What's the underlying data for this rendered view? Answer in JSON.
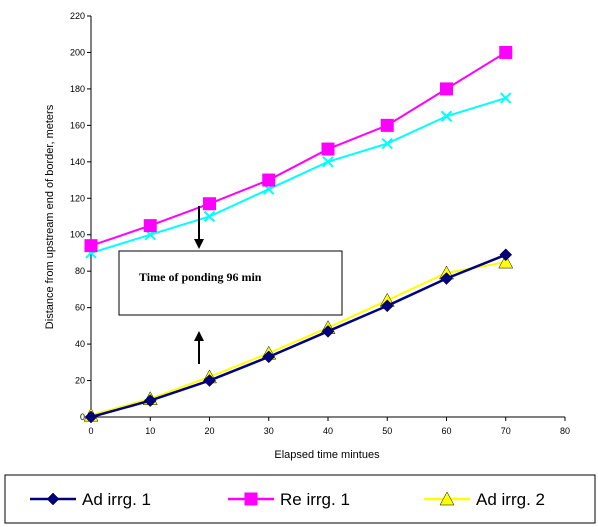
{
  "chart_data": {
    "type": "line",
    "xlabel": "Elapsed time mintues",
    "ylabel": "Distance from upstream end of border, meters",
    "xlim": [
      0,
      80
    ],
    "ylim": [
      0,
      220
    ],
    "xticks": [
      0,
      10,
      20,
      30,
      40,
      50,
      60,
      70,
      80
    ],
    "yticks": [
      0,
      20,
      40,
      60,
      80,
      100,
      120,
      140,
      160,
      180,
      200,
      220
    ],
    "grid": false,
    "legend_position": "bottom",
    "annotation": "Time of ponding 96  min",
    "series": [
      {
        "name": "Ad irrg. 1",
        "marker": "diamond",
        "color": "#000080",
        "x": [
          0,
          10,
          20,
          30,
          40,
          50,
          60,
          70
        ],
        "y": [
          0,
          9,
          20,
          33,
          47,
          61,
          76,
          89
        ]
      },
      {
        "name": "Re irrg. 1",
        "marker": "square",
        "color": "#FF00FF",
        "x": [
          0,
          10,
          20,
          30,
          40,
          50,
          60,
          70
        ],
        "y": [
          94,
          105,
          117,
          130,
          147,
          160,
          180,
          200
        ]
      },
      {
        "name": "Ad irrg. 2",
        "marker": "triangle",
        "color": "#FFFF00",
        "x": [
          0,
          10,
          20,
          30,
          40,
          50,
          60,
          70
        ],
        "y": [
          1,
          10,
          22,
          35,
          49,
          64,
          79,
          85
        ]
      },
      {
        "name": "",
        "marker": "x",
        "color": "#00FFFF",
        "x": [
          0,
          10,
          20,
          30,
          40,
          50,
          60,
          70
        ],
        "y": [
          90,
          100,
          110,
          125,
          140,
          150,
          165,
          175
        ]
      }
    ]
  }
}
